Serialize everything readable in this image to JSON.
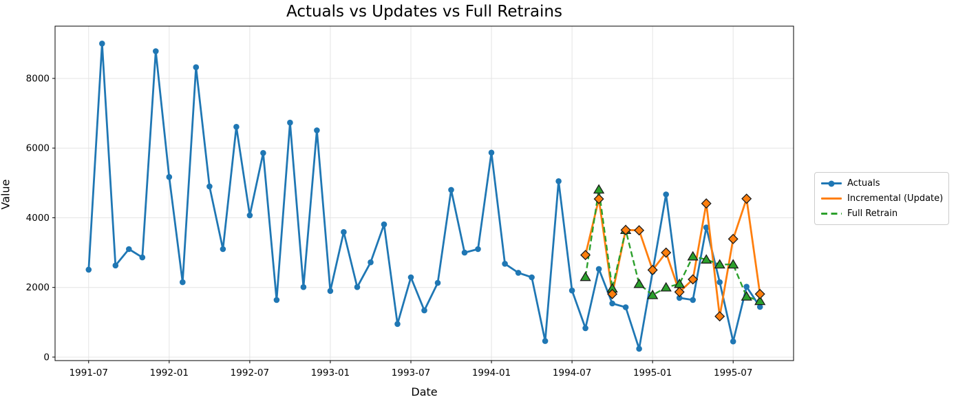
{
  "chart_data": {
    "type": "line",
    "title": "Actuals vs Updates vs Full Retrains",
    "xlabel": "Date",
    "ylabel": "Value",
    "grid": true,
    "legend_position": "right-outside",
    "x": [
      "1991-07",
      "1991-08",
      "1991-09",
      "1991-10",
      "1991-11",
      "1991-12",
      "1992-01",
      "1992-02",
      "1992-03",
      "1992-04",
      "1992-05",
      "1992-06",
      "1992-07",
      "1992-08",
      "1992-09",
      "1992-10",
      "1992-11",
      "1992-12",
      "1993-01",
      "1993-02",
      "1993-03",
      "1993-04",
      "1993-05",
      "1993-06",
      "1993-07",
      "1993-08",
      "1993-09",
      "1993-10",
      "1993-11",
      "1993-12",
      "1994-01",
      "1994-02",
      "1994-03",
      "1994-04",
      "1994-05",
      "1994-06",
      "1994-07",
      "1994-08",
      "1994-09",
      "1994-10",
      "1994-11",
      "1994-12",
      "1995-01",
      "1995-02",
      "1995-03",
      "1995-04",
      "1995-05",
      "1995-06",
      "1995-07",
      "1995-08",
      "1995-09"
    ],
    "x_tick_indices": [
      0,
      6,
      12,
      18,
      24,
      30,
      36,
      42,
      48
    ],
    "x_tick_labels": [
      "1991-07",
      "1992-01",
      "1992-07",
      "1993-01",
      "1993-07",
      "1994-01",
      "1994-07",
      "1995-01",
      "1995-07"
    ],
    "y_ticks": [
      0,
      2000,
      4000,
      6000,
      8000
    ],
    "ylim": [
      -100,
      9500
    ],
    "xlim_months": [
      -2.5,
      52.5
    ],
    "colors": {
      "actuals": "#1f77b4",
      "incremental": "#ff7f0e",
      "full_retrain": "#2ca02c",
      "grid": "#e4e4e4",
      "spine": "#000000",
      "marker_edge": "#1a1a1a"
    },
    "series": [
      {
        "name": "Actuals",
        "color": "#1f77b4",
        "style": "solid",
        "marker": "circle",
        "start_index": 0,
        "values": [
          2510,
          9000,
          2630,
          3100,
          2860,
          8780,
          5170,
          2150,
          8320,
          4900,
          3100,
          6610,
          4070,
          5860,
          1640,
          6730,
          2010,
          6510,
          1900,
          3590,
          2010,
          2720,
          3810,
          950,
          2290,
          1340,
          2130,
          4800,
          3000,
          3100,
          5870,
          2680,
          2420,
          2290,
          460,
          5050,
          1910,
          830,
          2530,
          1540,
          1430,
          240,
          2450,
          4670,
          1700,
          1640,
          3720,
          2150,
          450,
          2020,
          1440
        ]
      },
      {
        "name": "Incremental (Update)",
        "color": "#ff7f0e",
        "style": "solid",
        "marker": "diamond",
        "start_index": 37,
        "values": [
          2930,
          4540,
          1810,
          3650,
          3640,
          2500,
          3000,
          1870,
          2230,
          4410,
          1170,
          3390,
          4545,
          1810
        ]
      },
      {
        "name": "Full Retrain",
        "color": "#2ca02c",
        "style": "dashed",
        "marker": "triangle",
        "start_index": 37,
        "values": [
          2300,
          4810,
          1970,
          3650,
          2100,
          1780,
          2000,
          2100,
          2890,
          2800,
          2660,
          2660,
          1740,
          1610
        ]
      }
    ]
  }
}
